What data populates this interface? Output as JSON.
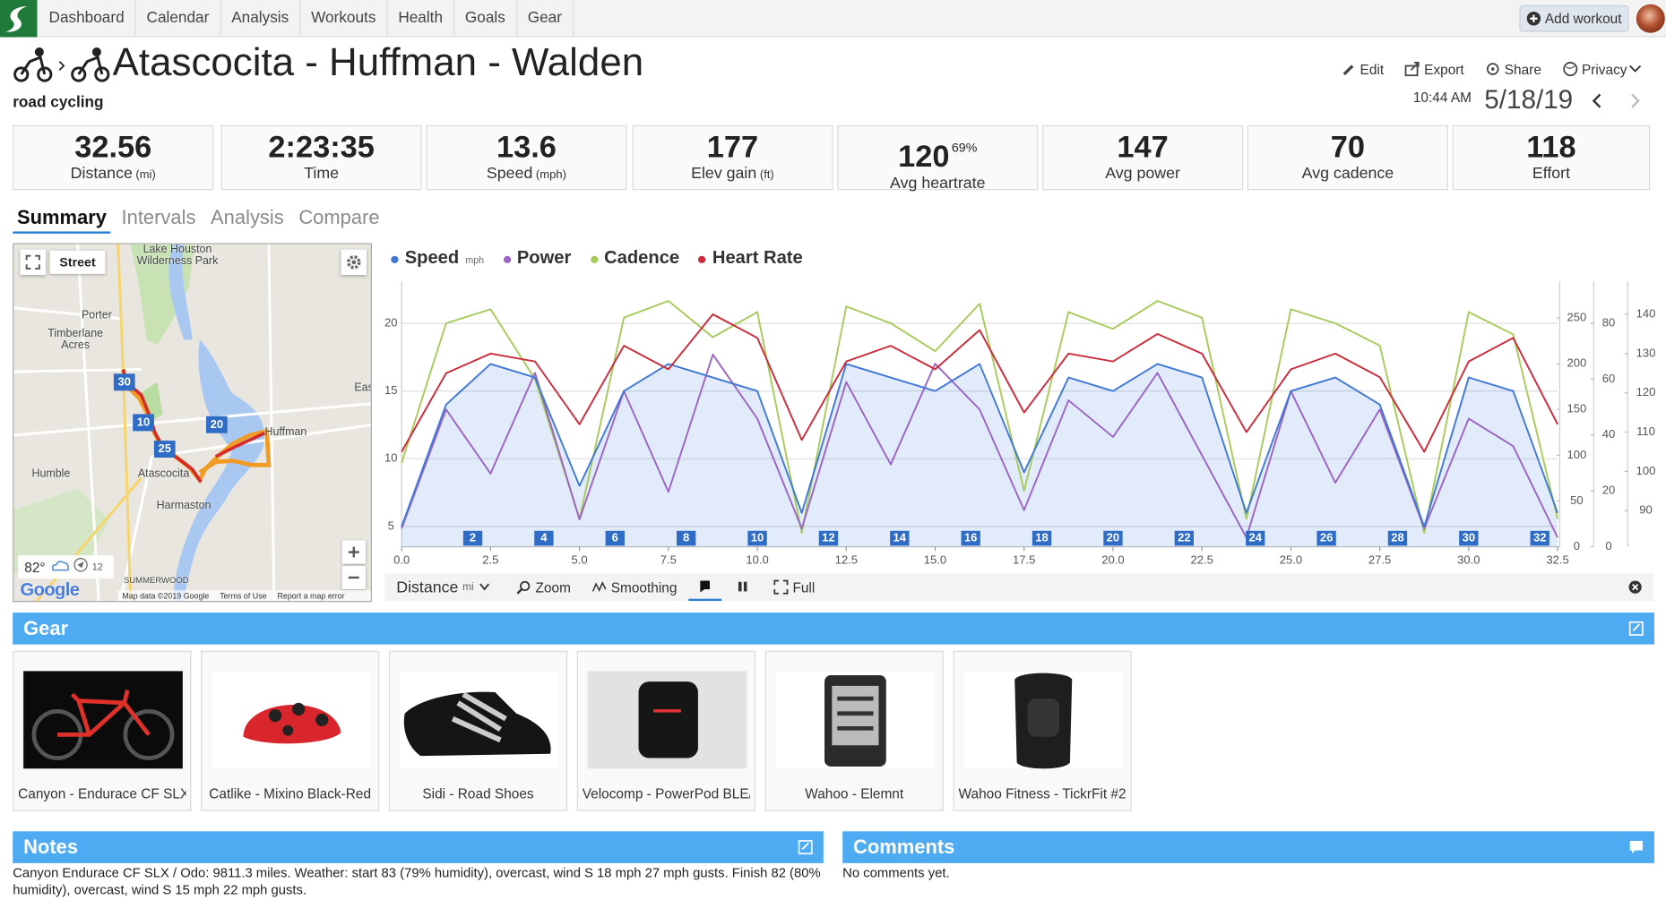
{
  "nav": {
    "items": [
      "Dashboard",
      "Calendar",
      "Analysis",
      "Workouts",
      "Health",
      "Goals",
      "Gear"
    ],
    "add_workout": "Add workout"
  },
  "header": {
    "title": "Atascocita - Huffman - Walden",
    "sport": "road cycling",
    "actions": [
      "Edit",
      "Export",
      "Share",
      "Privacy"
    ],
    "time": "10:44 AM",
    "date": "5/18/19"
  },
  "stats": [
    {
      "value": 32.56,
      "label": "Distance",
      "unit": "(mi)"
    },
    {
      "value": "2:23:35",
      "label": "Time"
    },
    {
      "value": 13.6,
      "label": "Speed",
      "unit": "(mph)"
    },
    {
      "value": 177,
      "label": "Elev gain",
      "unit": "(ft)"
    },
    {
      "value": 120,
      "extra": "69%",
      "label": "Avg heartrate"
    },
    {
      "value": 147,
      "label": "Avg power"
    },
    {
      "value": 70,
      "label": "Avg cadence"
    },
    {
      "value": 118,
      "label": "Effort"
    }
  ],
  "tabs": [
    "Summary",
    "Intervals",
    "Analysis",
    "Compare"
  ],
  "map": {
    "style_button": "Street",
    "labels": [
      "Lake Houston Wilderness Park",
      "Porter",
      "Timberlane Acres",
      "East",
      "Huffman",
      "Humble",
      "Atascocita",
      "Harmaston",
      "SUMMERWOOD"
    ],
    "route_markers": [
      "30",
      "10",
      "25",
      "20"
    ],
    "temperature": "82°",
    "wind": "12",
    "logo": "Google",
    "footer": [
      "Map data ©2019 Google",
      "Terms of Use",
      "Report a map error"
    ]
  },
  "chart_data": {
    "type": "line",
    "x": [
      0,
      1.25,
      2.5,
      3.75,
      5,
      6.25,
      7.5,
      8.75,
      10,
      11.25,
      12.5,
      13.75,
      15,
      16.25,
      17.5,
      18.75,
      20,
      21.25,
      22.5,
      23.75,
      25,
      26.25,
      27.5,
      28.75,
      30,
      31.25,
      32.5
    ],
    "series": [
      {
        "name": "Speed",
        "unit": "mph",
        "color": "#3f78d6",
        "axis": "y",
        "values": [
          5,
          14,
          17,
          16,
          8,
          15,
          17,
          16,
          15,
          6,
          17,
          16,
          15,
          17,
          9,
          16,
          15,
          17,
          16,
          6,
          15,
          16,
          14,
          5,
          16,
          15,
          6
        ]
      },
      {
        "name": "Power",
        "color": "#9b63c4",
        "axis": "y2",
        "values": [
          20,
          150,
          80,
          190,
          30,
          170,
          60,
          210,
          140,
          20,
          180,
          90,
          200,
          150,
          40,
          160,
          120,
          190,
          100,
          10,
          170,
          70,
          150,
          20,
          140,
          110,
          10
        ]
      },
      {
        "name": "Cadence",
        "color": "#a6cb5a",
        "axis": "y3",
        "values": [
          30,
          80,
          85,
          60,
          10,
          82,
          88,
          75,
          84,
          5,
          86,
          80,
          70,
          87,
          20,
          84,
          78,
          88,
          82,
          10,
          85,
          80,
          72,
          5,
          84,
          76,
          10
        ]
      },
      {
        "name": "Heart Rate",
        "color": "#cc2a3a",
        "axis": "y4",
        "values": [
          105,
          125,
          130,
          128,
          112,
          132,
          126,
          140,
          134,
          108,
          128,
          132,
          126,
          136,
          115,
          130,
          128,
          135,
          130,
          110,
          126,
          130,
          124,
          105,
          128,
          134,
          112
        ]
      }
    ],
    "xlim": [
      0,
      32.5
    ],
    "xticks": [
      {
        "value": 0,
        "label": "0.0"
      },
      2.5,
      {
        "value": 5,
        "label": "5.0"
      },
      7.5,
      {
        "value": 10,
        "label": "10.0"
      },
      12.5,
      {
        "value": 15,
        "label": "15.0"
      },
      17.5,
      {
        "value": 20,
        "label": "20.0"
      },
      22.5,
      {
        "value": 25,
        "label": "25.0"
      },
      27.5,
      {
        "value": 30,
        "label": "30.0"
      },
      32.5
    ],
    "ylim": [
      3.5,
      23.1
    ],
    "yticks": [
      5,
      10,
      15,
      20
    ],
    "y2lim": [
      0,
      290
    ],
    "y2ticks": [
      0,
      50,
      100,
      150,
      200,
      250
    ],
    "y3lim": [
      0,
      95
    ],
    "y3ticks": [
      0,
      20,
      40,
      60,
      80
    ],
    "y4lim": [
      80.8,
      148.4
    ],
    "y4ticks": [
      90,
      100,
      110,
      120,
      130,
      140
    ],
    "laps": [
      2,
      4,
      6,
      8,
      10,
      12,
      14,
      16,
      18,
      20,
      22,
      24,
      26,
      28,
      30,
      32
    ],
    "grid": true
  },
  "chart_toolbar": {
    "axis": "Distance",
    "unit": "mi",
    "zoom": "Zoom",
    "smoothing": "Smoothing",
    "full": "Full"
  },
  "gear": {
    "title": "Gear",
    "items": [
      "Canyon - Endurace CF SLX I",
      "Catlike - Mixino Black-Red",
      "Sidi - Road Shoes",
      "Velocomp - PowerPod BLE/",
      "Wahoo - Elemnt",
      "Wahoo Fitness - TickrFit #2"
    ]
  },
  "notes": {
    "title": "Notes",
    "text": "Canyon Endurace CF SLX / Odo: 9811.3 miles. Weather: start 83 (79% humidity), overcast, wind S 18 mph 27 mph gusts. Finish 82 (80% humidity), overcast, wind S 15 mph 22 mph gusts."
  },
  "comments": {
    "title": "Comments",
    "text": "No comments yet."
  }
}
